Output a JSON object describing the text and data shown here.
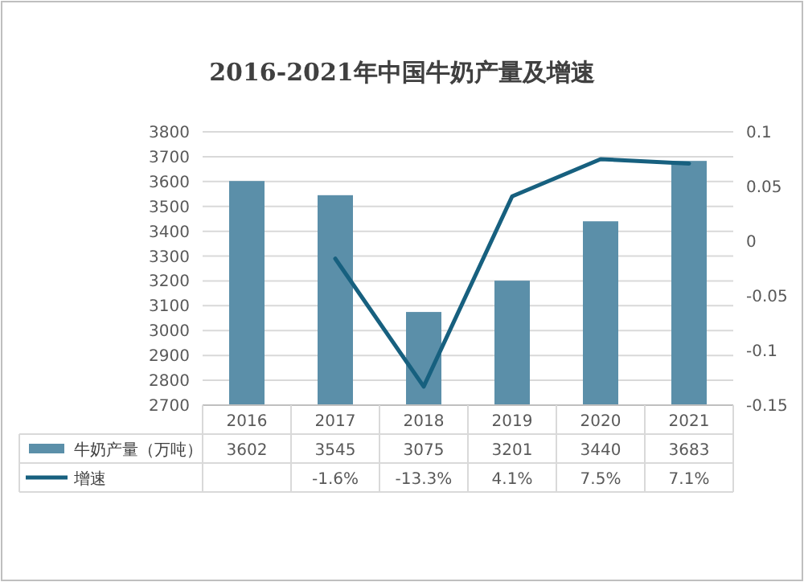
{
  "chart_data": {
    "type": "bar",
    "title": "2016-2021年中国牛奶产量及增速",
    "categories": [
      "2016",
      "2017",
      "2018",
      "2019",
      "2020",
      "2021"
    ],
    "series": [
      {
        "name": "牛奶产量（万吨）",
        "color": "#5b8fa9",
        "values": [
          3602,
          3545,
          3075,
          3201,
          3440,
          3683
        ],
        "value_labels": [
          "3602",
          "3545",
          "3075",
          "3201",
          "3440",
          "3683"
        ]
      },
      {
        "name": "增速",
        "type": "line",
        "axis": "y2",
        "color": "#17607f",
        "values": [
          null,
          -0.016,
          -0.133,
          0.041,
          0.075,
          0.071
        ],
        "value_labels": [
          null,
          "-1.6%",
          "-13.3%",
          "4.1%",
          "7.5%",
          "7.1%"
        ]
      }
    ],
    "ylim": [
      2700,
      3800
    ],
    "yticks": [
      2700,
      2800,
      2900,
      3000,
      3100,
      3200,
      3300,
      3400,
      3500,
      3600,
      3700,
      3800
    ],
    "y2lim": [
      -0.15,
      0.1
    ],
    "y2ticks": [
      -0.15,
      -0.1,
      -0.05,
      0,
      0.05,
      0.1
    ],
    "grid": "y",
    "legend": "bottom left",
    "marker": "none",
    "line_style": "solid"
  }
}
